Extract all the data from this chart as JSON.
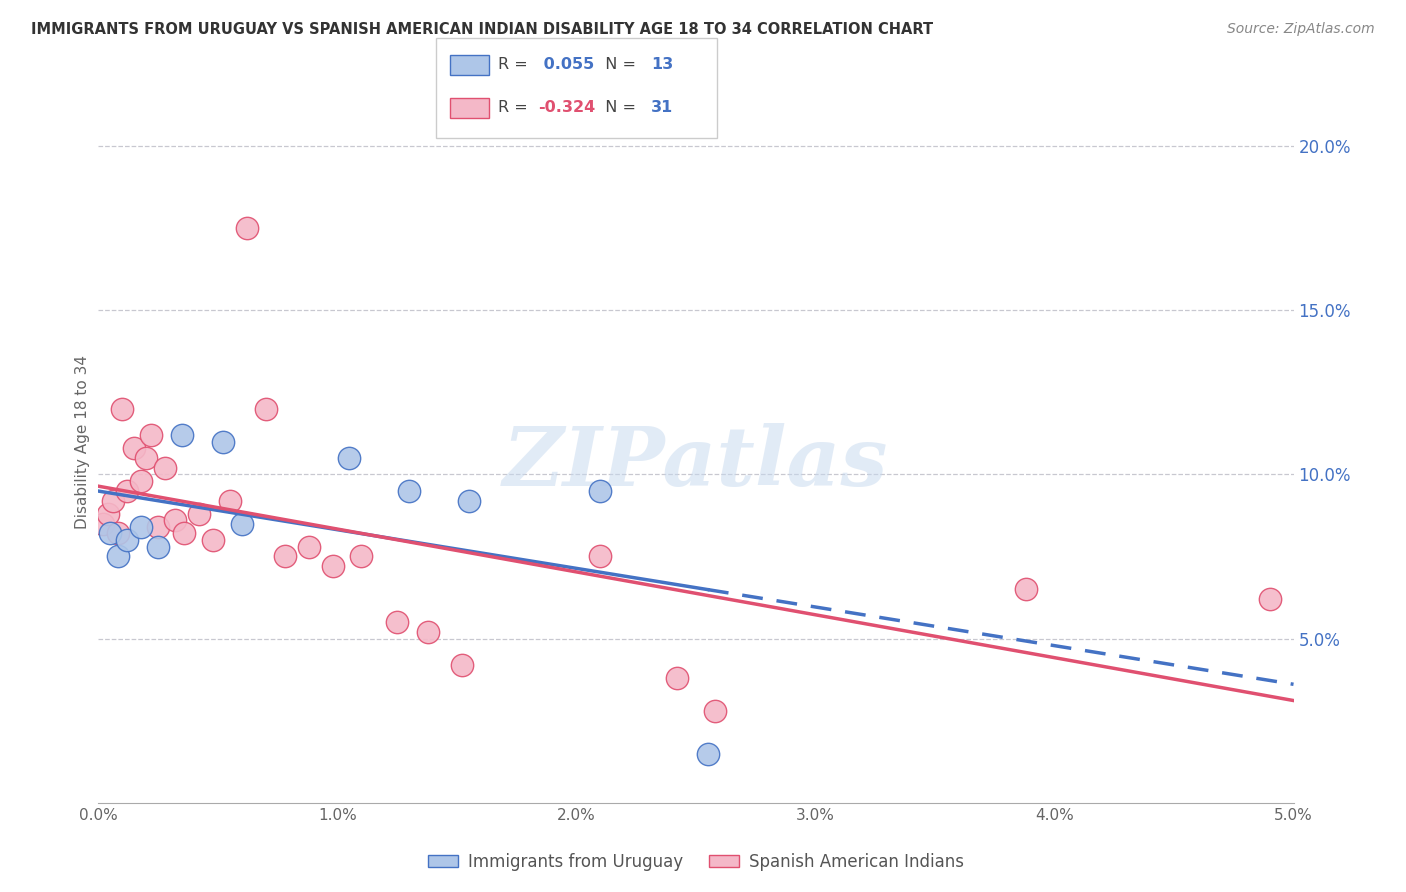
{
  "title": "IMMIGRANTS FROM URUGUAY VS SPANISH AMERICAN INDIAN DISABILITY AGE 18 TO 34 CORRELATION CHART",
  "source": "Source: ZipAtlas.com",
  "ylabel": "Disability Age 18 to 34",
  "watermark": "ZIPatlas",
  "xlim": [
    0.0,
    5.0
  ],
  "ylim": [
    0.0,
    22.0
  ],
  "yticks_right": [
    5.0,
    10.0,
    15.0,
    20.0
  ],
  "ytick_labels_right": [
    "5.0%",
    "10.0%",
    "15.0%",
    "20.0%"
  ],
  "series": [
    {
      "name": "Immigrants from Uruguay",
      "R": 0.055,
      "N": 13,
      "color": "#aec6e8",
      "line_color": "#4472c4",
      "x": [
        0.05,
        0.08,
        0.12,
        0.18,
        0.25,
        0.35,
        0.52,
        0.6,
        1.05,
        1.3,
        1.55,
        2.1,
        2.55
      ],
      "y": [
        8.2,
        7.5,
        8.0,
        8.4,
        7.8,
        11.2,
        11.0,
        8.5,
        10.5,
        9.5,
        9.2,
        9.5,
        1.5
      ]
    },
    {
      "name": "Spanish American Indians",
      "R": -0.324,
      "N": 31,
      "color": "#f4b8c8",
      "line_color": "#e05070",
      "x": [
        0.02,
        0.04,
        0.06,
        0.08,
        0.1,
        0.12,
        0.15,
        0.18,
        0.2,
        0.22,
        0.25,
        0.28,
        0.32,
        0.36,
        0.42,
        0.48,
        0.55,
        0.62,
        0.7,
        0.78,
        0.88,
        0.98,
        1.1,
        1.25,
        1.38,
        1.52,
        2.1,
        2.42,
        2.58,
        3.88,
        4.9
      ],
      "y": [
        8.5,
        8.8,
        9.2,
        8.2,
        12.0,
        9.5,
        10.8,
        9.8,
        10.5,
        11.2,
        8.4,
        10.2,
        8.6,
        8.2,
        8.8,
        8.0,
        9.2,
        17.5,
        12.0,
        7.5,
        7.8,
        7.2,
        7.5,
        5.5,
        5.2,
        4.2,
        7.5,
        3.8,
        2.8,
        6.5,
        6.2
      ]
    }
  ],
  "title_color": "#333333",
  "right_axis_color": "#4472c4",
  "grid_color": "#c8c8d0",
  "background_color": "#ffffff"
}
